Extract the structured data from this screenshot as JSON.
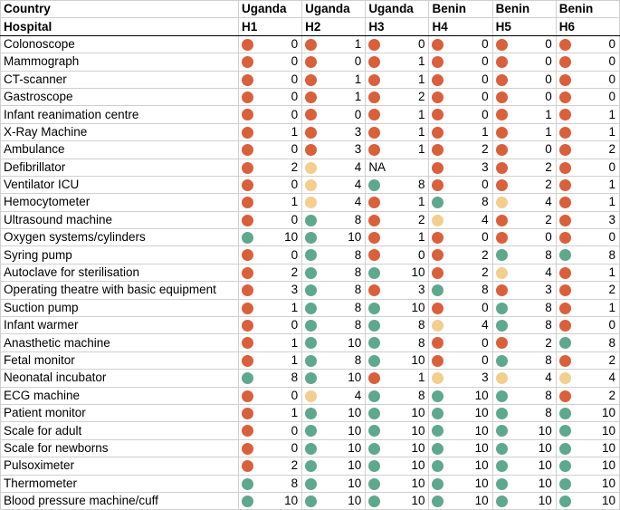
{
  "table": {
    "country_label": "Country",
    "hospital_label": "Hospital",
    "countries": [
      "Uganda",
      "Uganda",
      "Uganda",
      "Benin",
      "Benin",
      "Benin"
    ],
    "hospitals": [
      "H1",
      "H2",
      "H3",
      "H4",
      "H5",
      "H6"
    ],
    "rows": [
      {
        "label": "Colonoscope",
        "values": [
          0,
          1,
          0,
          0,
          0,
          0
        ],
        "colors": [
          "#d9603b",
          "#d9603b",
          "#d9603b",
          "#d9603b",
          "#d9603b",
          "#d9603b"
        ]
      },
      {
        "label": "Mammograph",
        "values": [
          0,
          0,
          1,
          0,
          0,
          0
        ],
        "colors": [
          "#d9603b",
          "#d9603b",
          "#d9603b",
          "#d9603b",
          "#d9603b",
          "#d9603b"
        ]
      },
      {
        "label": "CT-scanner",
        "values": [
          0,
          1,
          1,
          0,
          0,
          0
        ],
        "colors": [
          "#d9603b",
          "#d9603b",
          "#d9603b",
          "#d9603b",
          "#d9603b",
          "#d9603b"
        ]
      },
      {
        "label": "Gastroscope",
        "values": [
          0,
          1,
          2,
          0,
          0,
          0
        ],
        "colors": [
          "#d9603b",
          "#d9603b",
          "#d9603b",
          "#d9603b",
          "#d9603b",
          "#d9603b"
        ]
      },
      {
        "label": "Infant reanimation centre",
        "values": [
          0,
          0,
          1,
          0,
          1,
          1
        ],
        "colors": [
          "#d9603b",
          "#d9603b",
          "#d9603b",
          "#d9603b",
          "#d9603b",
          "#d9603b"
        ]
      },
      {
        "label": "X-Ray Machine",
        "values": [
          1,
          3,
          1,
          1,
          1,
          1
        ],
        "colors": [
          "#d9603b",
          "#d9603b",
          "#d9603b",
          "#d9603b",
          "#d9603b",
          "#d9603b"
        ]
      },
      {
        "label": "Ambulance",
        "values": [
          0,
          3,
          1,
          2,
          0,
          2
        ],
        "colors": [
          "#d9603b",
          "#d9603b",
          "#d9603b",
          "#d9603b",
          "#d9603b",
          "#d9603b"
        ]
      },
      {
        "label": "Defibrillator",
        "values": [
          2,
          4,
          "NA",
          3,
          2,
          0
        ],
        "colors": [
          "#d9603b",
          "#f2cf8e",
          null,
          "#d9603b",
          "#d9603b",
          "#d9603b"
        ]
      },
      {
        "label": "Ventilator ICU",
        "values": [
          0,
          4,
          8,
          0,
          2,
          1
        ],
        "colors": [
          "#d9603b",
          "#f2cf8e",
          "#5ea88e",
          "#d9603b",
          "#d9603b",
          "#d9603b"
        ]
      },
      {
        "label": "Hemocytometer",
        "values": [
          1,
          4,
          1,
          8,
          4,
          1
        ],
        "colors": [
          "#d9603b",
          "#f2cf8e",
          "#d9603b",
          "#5ea88e",
          "#f2cf8e",
          "#d9603b"
        ]
      },
      {
        "label": "Ultrasound machine",
        "values": [
          0,
          8,
          2,
          4,
          2,
          3
        ],
        "colors": [
          "#d9603b",
          "#5ea88e",
          "#d9603b",
          "#f2cf8e",
          "#d9603b",
          "#d9603b"
        ]
      },
      {
        "label": "Oxygen systems/cylinders",
        "values": [
          10,
          10,
          1,
          0,
          0,
          0
        ],
        "colors": [
          "#5ea88e",
          "#5ea88e",
          "#d9603b",
          "#d9603b",
          "#d9603b",
          "#d9603b"
        ]
      },
      {
        "label": "Syring pump",
        "values": [
          0,
          8,
          0,
          2,
          8,
          8
        ],
        "colors": [
          "#d9603b",
          "#5ea88e",
          "#d9603b",
          "#d9603b",
          "#5ea88e",
          "#5ea88e"
        ]
      },
      {
        "label": "Autoclave for sterilisation",
        "values": [
          2,
          8,
          10,
          2,
          4,
          1
        ],
        "colors": [
          "#d9603b",
          "#5ea88e",
          "#5ea88e",
          "#d9603b",
          "#f2cf8e",
          "#d9603b"
        ]
      },
      {
        "label": "Operating theatre with basic equipment",
        "values": [
          3,
          8,
          3,
          8,
          3,
          2
        ],
        "colors": [
          "#d9603b",
          "#5ea88e",
          "#d9603b",
          "#5ea88e",
          "#d9603b",
          "#d9603b"
        ]
      },
      {
        "label": "Suction pump",
        "values": [
          1,
          8,
          10,
          0,
          8,
          1
        ],
        "colors": [
          "#d9603b",
          "#5ea88e",
          "#5ea88e",
          "#d9603b",
          "#5ea88e",
          "#d9603b"
        ]
      },
      {
        "label": "Infant warmer",
        "values": [
          0,
          8,
          8,
          4,
          8,
          0
        ],
        "colors": [
          "#d9603b",
          "#5ea88e",
          "#5ea88e",
          "#f2cf8e",
          "#5ea88e",
          "#d9603b"
        ]
      },
      {
        "label": "Anasthetic machine",
        "values": [
          1,
          10,
          8,
          0,
          2,
          8
        ],
        "colors": [
          "#d9603b",
          "#5ea88e",
          "#5ea88e",
          "#d9603b",
          "#d9603b",
          "#5ea88e"
        ]
      },
      {
        "label": "Fetal monitor",
        "values": [
          1,
          8,
          10,
          0,
          8,
          2
        ],
        "colors": [
          "#d9603b",
          "#5ea88e",
          "#5ea88e",
          "#d9603b",
          "#5ea88e",
          "#d9603b"
        ]
      },
      {
        "label": "Neonatal incubator",
        "values": [
          8,
          10,
          1,
          3,
          4,
          4
        ],
        "colors": [
          "#5ea88e",
          "#5ea88e",
          "#d9603b",
          "#f2cf8e",
          "#f2cf8e",
          "#f2cf8e"
        ]
      },
      {
        "label": "ECG machine",
        "values": [
          0,
          4,
          8,
          10,
          8,
          2
        ],
        "colors": [
          "#d9603b",
          "#f2cf8e",
          "#5ea88e",
          "#5ea88e",
          "#5ea88e",
          "#d9603b"
        ]
      },
      {
        "label": "Patient monitor",
        "values": [
          1,
          10,
          10,
          10,
          8,
          10
        ],
        "colors": [
          "#d9603b",
          "#5ea88e",
          "#5ea88e",
          "#5ea88e",
          "#5ea88e",
          "#5ea88e"
        ]
      },
      {
        "label": "Scale for adult",
        "values": [
          0,
          10,
          10,
          10,
          10,
          10
        ],
        "colors": [
          "#d9603b",
          "#5ea88e",
          "#5ea88e",
          "#5ea88e",
          "#5ea88e",
          "#5ea88e"
        ]
      },
      {
        "label": "Scale for newborns",
        "values": [
          0,
          10,
          10,
          10,
          10,
          10
        ],
        "colors": [
          "#d9603b",
          "#5ea88e",
          "#5ea88e",
          "#5ea88e",
          "#5ea88e",
          "#5ea88e"
        ]
      },
      {
        "label": "Pulsoximeter",
        "values": [
          2,
          10,
          10,
          10,
          10,
          10
        ],
        "colors": [
          "#d9603b",
          "#5ea88e",
          "#5ea88e",
          "#5ea88e",
          "#5ea88e",
          "#5ea88e"
        ]
      },
      {
        "label": "Thermometer",
        "values": [
          8,
          10,
          10,
          10,
          10,
          10
        ],
        "colors": [
          "#5ea88e",
          "#5ea88e",
          "#5ea88e",
          "#5ea88e",
          "#5ea88e",
          "#5ea88e"
        ]
      },
      {
        "label": "Blood pressure machine/cuff",
        "values": [
          10,
          10,
          10,
          10,
          10,
          10
        ],
        "colors": [
          "#5ea88e",
          "#5ea88e",
          "#5ea88e",
          "#5ea88e",
          "#5ea88e",
          "#5ea88e"
        ]
      }
    ]
  }
}
